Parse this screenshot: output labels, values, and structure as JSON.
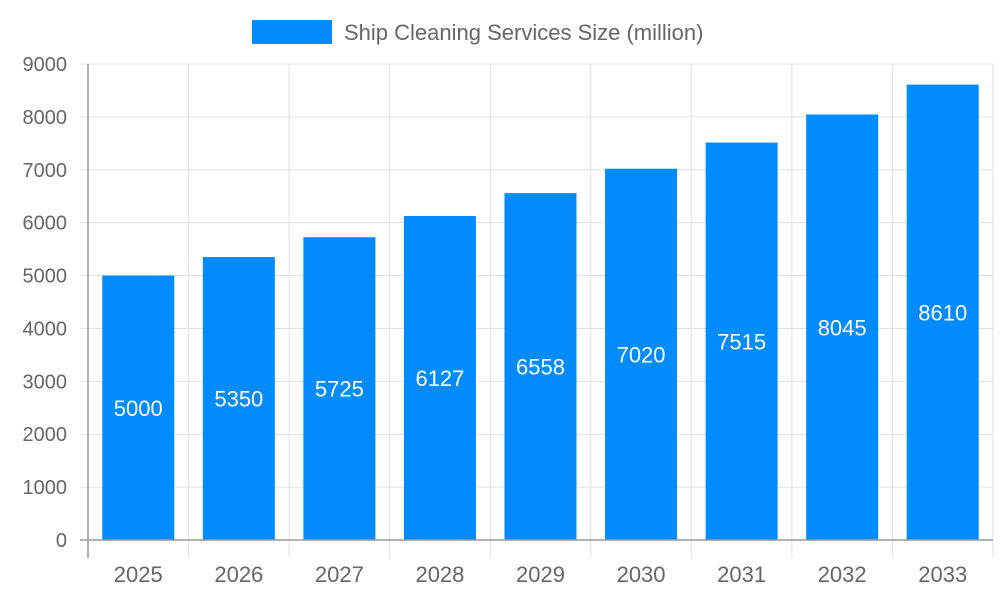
{
  "chart_data": {
    "type": "bar",
    "title": "",
    "xlabel": "",
    "ylabel": "",
    "categories": [
      "2025",
      "2026",
      "2027",
      "2028",
      "2029",
      "2030",
      "2031",
      "2032",
      "2033"
    ],
    "series": [
      {
        "name": "Ship Cleaning Services Size (million)",
        "values": [
          5000,
          5350,
          5725,
          6127,
          6558,
          7020,
          7515,
          8045,
          8610
        ],
        "color": "#008cff"
      }
    ],
    "ylim": [
      0,
      9000
    ],
    "yticks": [
      "0",
      "1000",
      "2000",
      "3000",
      "4000",
      "5000",
      "6000",
      "7000",
      "8000",
      "9000"
    ],
    "grid": true,
    "legend": "top",
    "data_labels": true
  }
}
